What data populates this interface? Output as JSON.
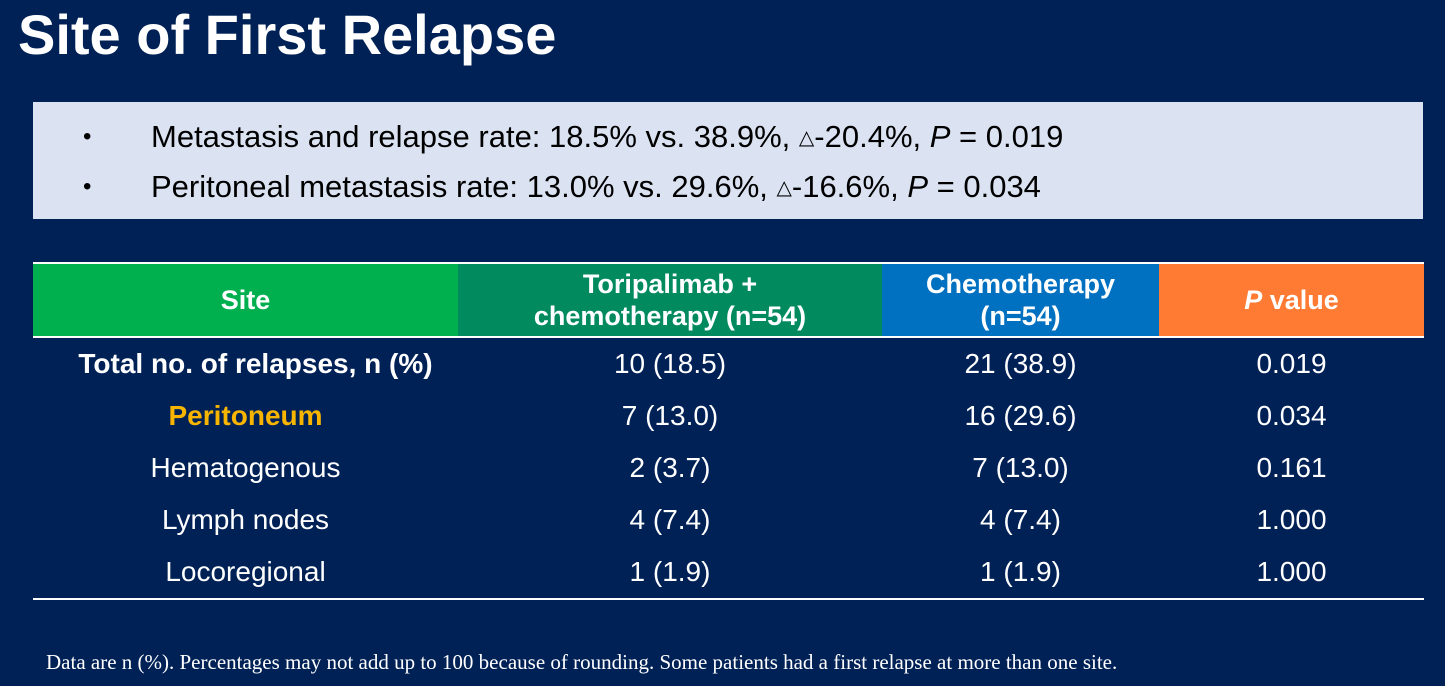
{
  "title": "Site of First Relapse",
  "summary": {
    "bullet_glyph": "•",
    "triangle_glyph": "△",
    "items": [
      {
        "pre": "Metastasis and relapse rate: 18.5% vs. 38.9%, ",
        "delta": "-20.4%, ",
        "p_label": "P",
        "p_rest": " = 0.019"
      },
      {
        "pre": "Peritoneal metastasis rate: 13.0%  vs. 29.6%, ",
        "delta": "-16.6%, ",
        "p_label": "P",
        "p_rest": " = 0.034"
      }
    ]
  },
  "table": {
    "headers": {
      "site": "Site",
      "tori_line1": "Toripalimab +",
      "tori_line2": "chemotherapy (n=54)",
      "chemo_line1": "Chemotherapy",
      "chemo_line2": "(n=54)",
      "p_italic": "P",
      "p_rest": " value"
    },
    "rows": [
      {
        "site": "Total no. of relapses, n (%)",
        "tori": "10 (18.5)",
        "chemo": "21 (38.9)",
        "p": "0.019"
      },
      {
        "site": "Peritoneum",
        "tori": "7 (13.0)",
        "chemo": "16 (29.6)",
        "p": "0.034"
      },
      {
        "site": "Hematogenous",
        "tori": "2 (3.7)",
        "chemo": "7 (13.0)",
        "p": "0.161"
      },
      {
        "site": "Lymph nodes",
        "tori": "4 (7.4)",
        "chemo": "4 (7.4)",
        "p": "1.000"
      },
      {
        "site": "Locoregional",
        "tori": "1 (1.9)",
        "chemo": "1 (1.9)",
        "p": "1.000"
      }
    ]
  },
  "footnote": "Data are n (%). Percentages may not add up to 100 because of rounding. Some patients had a first relapse at more than one site.",
  "colors": {
    "background": "#002156",
    "highlight": "#f7b500",
    "site_header": "#00b04f",
    "tori_header": "#008a5e",
    "chemo_header": "#0070c0",
    "p_header": "#ff7a33"
  }
}
